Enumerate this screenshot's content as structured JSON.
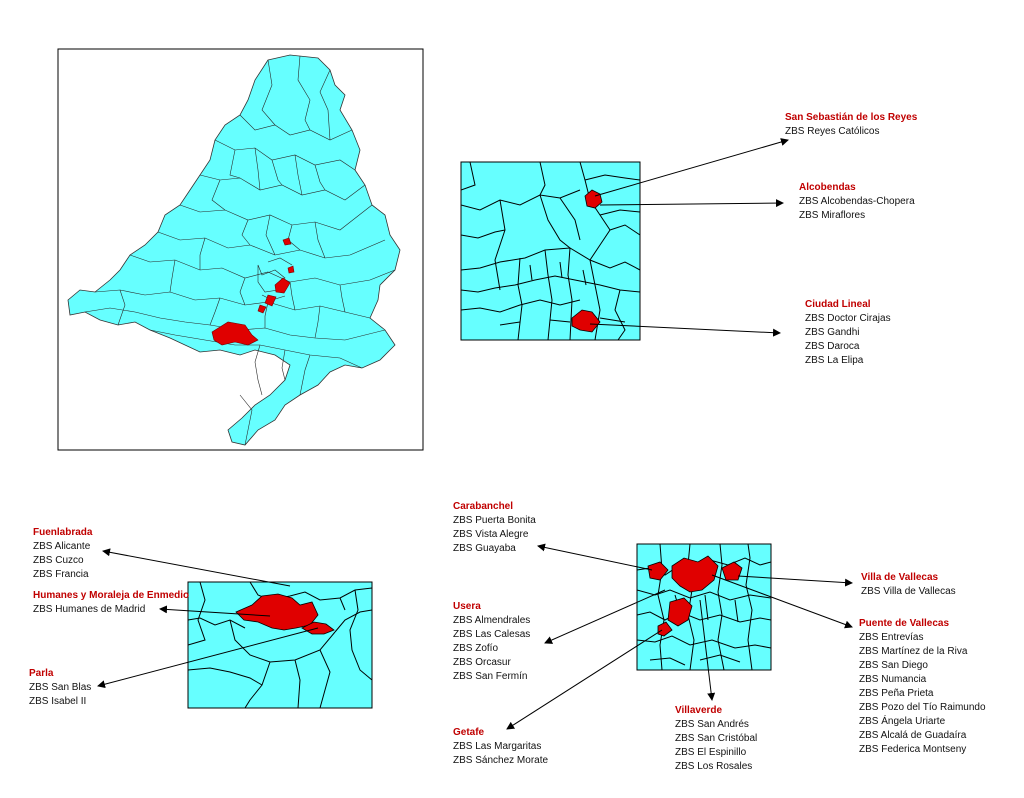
{
  "colors": {
    "land": "#66ffff",
    "highlight": "#e00000",
    "label": "#c00000",
    "border": "#000000"
  },
  "groups": {
    "ssr": {
      "area": "San Sebastián de los Reyes",
      "zbs": [
        "ZBS Reyes Católicos"
      ]
    },
    "alc": {
      "area": "Alcobendas",
      "zbs": [
        "ZBS Alcobendas-Chopera",
        "ZBS Miraflores"
      ]
    },
    "ciu": {
      "area": "Ciudad Lineal",
      "zbs": [
        "ZBS Doctor Cirajas",
        "ZBS Gandhi",
        "ZBS Daroca",
        "ZBS La Elipa"
      ]
    },
    "fue": {
      "area": "Fuenlabrada",
      "zbs": [
        "ZBS Alicante",
        "ZBS Cuzco",
        "ZBS Francia"
      ]
    },
    "hum": {
      "area": "Humanes y Moraleja de Enmedio",
      "zbs": [
        "ZBS Humanes de Madrid"
      ]
    },
    "par": {
      "area": "Parla",
      "zbs": [
        "ZBS San Blas",
        "ZBS Isabel II"
      ]
    },
    "car": {
      "area": "Carabanchel",
      "zbs": [
        "ZBS Puerta Bonita",
        "ZBS Vista Alegre",
        "ZBS Guayaba"
      ]
    },
    "use": {
      "area": "Usera",
      "zbs": [
        "ZBS Almendrales",
        "ZBS Las Calesas",
        "ZBS Zofío",
        "ZBS Orcasur",
        "ZBS San Fermín"
      ]
    },
    "get": {
      "area": "Getafe",
      "zbs": [
        "ZBS Las Margaritas",
        "ZBS Sánchez Morate"
      ]
    },
    "vil": {
      "area": "Villaverde",
      "zbs": [
        "ZBS San Andrés",
        "ZBS San Cristóbal",
        "ZBS El Espinillo",
        "ZBS Los Rosales"
      ]
    },
    "vva": {
      "area": "Villa de Vallecas",
      "zbs": [
        "ZBS Villa de Vallecas"
      ]
    },
    "pva": {
      "area": "Puente de Vallecas",
      "zbs": [
        "ZBS Entrevías",
        "ZBS Martínez de la Riva",
        "ZBS San Diego",
        "ZBS Numancia",
        "ZBS Peña Prieta",
        "ZBS Pozo del Tío Raimundo",
        "ZBS Ángela Uriarte",
        "ZBS Alcalá de Guadaíra",
        "ZBS Federica Montseny"
      ]
    }
  }
}
